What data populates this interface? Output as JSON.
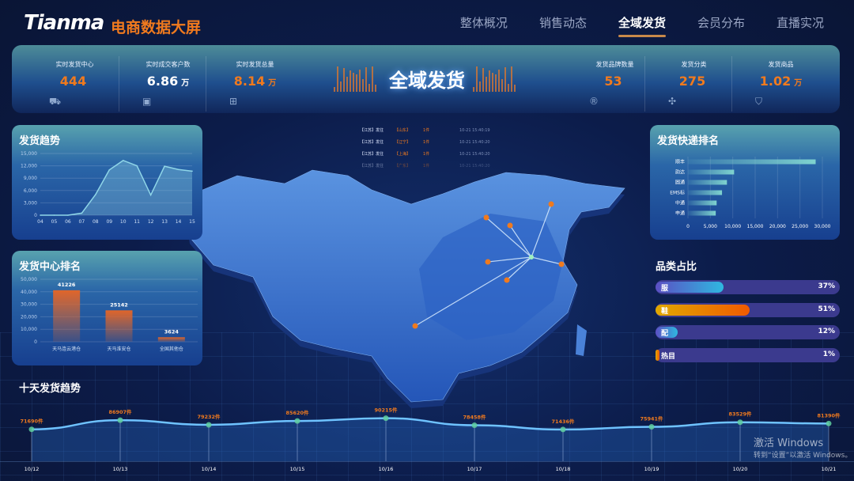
{
  "header": {
    "logo": "Tianma",
    "subtitle": "电商数据大屏",
    "nav": [
      "整体概况",
      "销售动态",
      "全域发货",
      "会员分布",
      "直播实况"
    ],
    "active_nav": 2
  },
  "kpis_left": [
    {
      "label": "实时发货中心",
      "value": "444",
      "unit": "",
      "color": "orange",
      "icon": "truck-icon"
    },
    {
      "label": "实时成交客户数",
      "value": "6.86",
      "unit": "万",
      "color": "white",
      "icon": "wallet-icon"
    },
    {
      "label": "实时发货总量",
      "value": "8.14",
      "unit": "万",
      "color": "orange",
      "icon": "package-icon"
    }
  ],
  "kpis_right": [
    {
      "label": "发货品牌数量",
      "value": "53",
      "unit": "",
      "color": "orange",
      "icon": "registered-icon"
    },
    {
      "label": "发货分类",
      "value": "275",
      "unit": "",
      "color": "orange",
      "icon": "grid-icon"
    },
    {
      "label": "发货商品",
      "value": "1.02",
      "unit": "万",
      "color": "orange",
      "icon": "bag-icon"
    }
  ],
  "center_title": "全域发货",
  "ticker": [
    {
      "from": "【江苏】发往",
      "to": "【山东】",
      "qty": "1件",
      "time": "10-21 15:40:19"
    },
    {
      "from": "【江苏】发往",
      "to": "【辽宁】",
      "qty": "1件",
      "time": "10-21 15:40:20"
    },
    {
      "from": "【江苏】发往",
      "to": "【上海】",
      "qty": "1件",
      "time": "10-21 15:40:20"
    },
    {
      "from": "【江苏】发往",
      "to": "【广东】",
      "qty": "1件",
      "time": "10-21 15:40:20"
    }
  ],
  "colors": {
    "accent": "#f07a1e",
    "panel_top": "#58a2ae",
    "panel_bottom": "#173f8f",
    "line": "#6fc3ff"
  },
  "chart_data": [
    {
      "id": "trend",
      "type": "area",
      "title": "发货趋势",
      "categories": [
        "04",
        "05",
        "06",
        "07",
        "08",
        "09",
        "10",
        "11",
        "12",
        "13",
        "14",
        "15"
      ],
      "values": [
        0,
        0,
        0,
        500,
        5000,
        11000,
        13300,
        12000,
        4900,
        11900,
        11100,
        10700
      ],
      "yticks": [
        "0",
        "3,000",
        "6,000",
        "9,000",
        "12,000",
        "15,000"
      ],
      "ylim": [
        0,
        15000
      ],
      "grid": true
    },
    {
      "id": "center",
      "type": "bar",
      "title": "发货中心排名",
      "categories": [
        "天马连云港仓",
        "天马淮安仓",
        "全国其他仓"
      ],
      "values": [
        41226,
        25142,
        3624
      ],
      "yticks": [
        "0",
        "10,000",
        "20,000",
        "30,000",
        "40,000",
        "50,000"
      ],
      "ylim": [
        0,
        50000
      ],
      "grid": true
    },
    {
      "id": "express",
      "type": "bar",
      "orientation": "horizontal",
      "title": "发货快递排名",
      "categories": [
        "顺丰",
        "韵达",
        "圆通",
        "EMS标",
        "中通",
        "申通"
      ],
      "values": [
        28500,
        10300,
        8700,
        7600,
        6400,
        6200
      ],
      "xticks": [
        "0",
        "5,000",
        "10,000",
        "15,000",
        "20,000",
        "25,000",
        "30,000"
      ],
      "xlim": [
        0,
        30000
      ],
      "grid": true
    },
    {
      "id": "category",
      "type": "bar",
      "title": "品类占比",
      "categories": [
        "服",
        "鞋",
        "配",
        "热目"
      ],
      "values": [
        37,
        51,
        12,
        1
      ],
      "labels": [
        "37%",
        "51%",
        "12%",
        "1%"
      ]
    },
    {
      "id": "tenday",
      "type": "line",
      "title": "十天发货趋势",
      "categories": [
        "10/12",
        "10/13",
        "10/14",
        "10/15",
        "10/16",
        "10/17",
        "10/18",
        "10/19",
        "10/20",
        "10/21"
      ],
      "values": [
        71690,
        86907,
        79232,
        85620,
        90215,
        78458,
        71436,
        75941,
        83529,
        81390
      ],
      "labels": [
        "71690件",
        "86907件",
        "79232件",
        "85620件",
        "90215件",
        "78458件",
        "71436件",
        "75941件",
        "83529件",
        "81390件"
      ]
    }
  ],
  "watermark": {
    "line1": "激活 Windows",
    "line2": "转到“设置”以激活 Windows。"
  }
}
